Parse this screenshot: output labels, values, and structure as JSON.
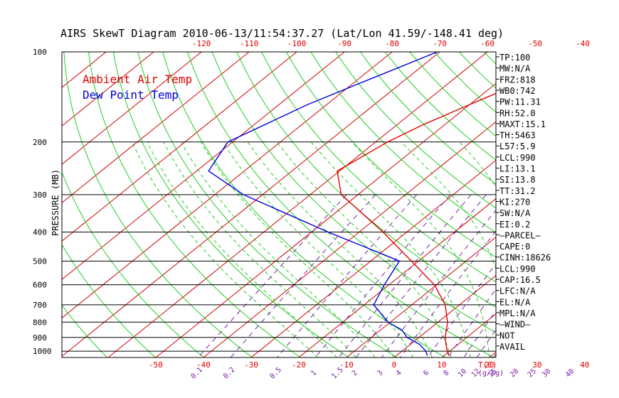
{
  "chart_data": {
    "type": "line",
    "title": "AIRS SkewT Diagram 2010-06-13/11:54:37.27 (Lat/Lon 41.59/-148.41 deg)",
    "ylabel": "PRESSURE (MB)",
    "xlabel_units": "T(C)",
    "mixing_units": "(g/kg)",
    "ylim": [
      1050,
      100
    ],
    "y_log_scale": true,
    "pressure_ticks": [
      100,
      200,
      300,
      400,
      500,
      600,
      700,
      800,
      900,
      1000
    ],
    "temperature_ticks_top": [
      -120,
      -110,
      -100,
      -90,
      -80,
      -70,
      -60,
      -50,
      -40
    ],
    "temperature_ticks_bottom": [
      -50,
      -40,
      -30,
      -20,
      -10,
      0,
      10,
      20,
      30,
      40
    ],
    "mixing_ratio_labels": [
      "0.1",
      "0.2",
      "0.5",
      "1",
      "1.5",
      "2",
      "3",
      "4",
      "6",
      "8",
      "10",
      "12",
      "15",
      "20",
      "25",
      "30",
      "40"
    ],
    "legend": [
      {
        "name": "Ambient Air Temp",
        "color": "#e00000"
      },
      {
        "name": "Dew Point Temp",
        "color": "#0000e0"
      }
    ],
    "series": [
      {
        "name": "Ambient Air Temp",
        "color": "#e00000",
        "points": [
          {
            "p": 100,
            "t": -39.5
          },
          {
            "p": 125,
            "t": -44.5
          },
          {
            "p": 150,
            "t": -50.0
          },
          {
            "p": 175,
            "t": -54.5
          },
          {
            "p": 200,
            "t": -57.5
          },
          {
            "p": 250,
            "t": -60.5
          },
          {
            "p": 300,
            "t": -53.5
          },
          {
            "p": 400,
            "t": -35.0
          },
          {
            "p": 500,
            "t": -21.5
          },
          {
            "p": 600,
            "t": -10.5
          },
          {
            "p": 700,
            "t": -3.0
          },
          {
            "p": 800,
            "t": 2.0
          },
          {
            "p": 900,
            "t": 5.5
          },
          {
            "p": 950,
            "t": 7.5
          },
          {
            "p": 1000,
            "t": 9.5
          },
          {
            "p": 1035,
            "t": 11.0
          }
        ]
      },
      {
        "name": "Dew Point Temp",
        "color": "#0000e0",
        "points": [
          {
            "p": 100,
            "t": -70.5
          },
          {
            "p": 125,
            "t": -78.0
          },
          {
            "p": 150,
            "t": -84.0
          },
          {
            "p": 200,
            "t": -91.0
          },
          {
            "p": 250,
            "t": -87.5
          },
          {
            "p": 300,
            "t": -74.0
          },
          {
            "p": 400,
            "t": -46.5
          },
          {
            "p": 500,
            "t": -24.0
          },
          {
            "p": 600,
            "t": -21.0
          },
          {
            "p": 700,
            "t": -18.0
          },
          {
            "p": 800,
            "t": -10.5
          },
          {
            "p": 850,
            "t": -5.5
          },
          {
            "p": 900,
            "t": -2.5
          },
          {
            "p": 950,
            "t": 2.0
          },
          {
            "p": 1000,
            "t": 5.0
          },
          {
            "p": 1035,
            "t": 6.5
          }
        ]
      }
    ],
    "side_labels": [
      "TP:100",
      "MW:N/A",
      "FRZ:818",
      "WB0:742",
      "PW:11.31",
      "RH:52.0",
      "MAXT:15.1",
      "TH:5463",
      "L57:5.9",
      "LCL:990",
      "LI:13.1",
      "SI:13.8",
      "TT:31.2",
      "KI:270",
      "SW:N/A",
      "EI:0.2",
      "—PARCEL—",
      "CAPE:0",
      "CINH:18626",
      "LCL:990",
      "CAP:16.5",
      "LFC:N/A",
      "EL:N/A",
      "MPL:N/A",
      "—WIND—",
      "NOT",
      "AVAIL"
    ]
  }
}
